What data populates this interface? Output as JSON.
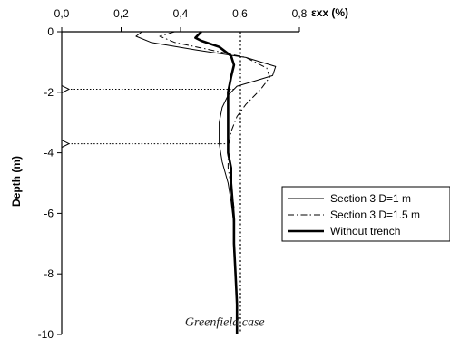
{
  "chart_data": {
    "type": "line",
    "title": "",
    "xlabel": "εxx (%)",
    "ylabel": "Depth (m)",
    "xlim": [
      0.0,
      0.8
    ],
    "ylim": [
      -10,
      0
    ],
    "x_axis_position": "top",
    "x_ticks": [
      "0,0",
      "0,2",
      "0,4",
      "0,6",
      "0,8"
    ],
    "y_ticks": [
      "0",
      "-2",
      "-4",
      "-6",
      "-8",
      "-10"
    ],
    "grid": false,
    "legend_position": "right",
    "series": [
      {
        "name": "Section 3 D=1 m",
        "style": "solid-thin",
        "color": "#000000",
        "points": [
          {
            "x": 0.27,
            "y": 0.0
          },
          {
            "x": 0.25,
            "y": -0.15
          },
          {
            "x": 0.3,
            "y": -0.35
          },
          {
            "x": 0.45,
            "y": -0.6
          },
          {
            "x": 0.62,
            "y": -0.85
          },
          {
            "x": 0.72,
            "y": -1.15
          },
          {
            "x": 0.71,
            "y": -1.45
          },
          {
            "x": 0.66,
            "y": -1.6
          },
          {
            "x": 0.59,
            "y": -1.8
          },
          {
            "x": 0.56,
            "y": -2.1
          },
          {
            "x": 0.54,
            "y": -2.5
          },
          {
            "x": 0.53,
            "y": -3.0
          },
          {
            "x": 0.53,
            "y": -3.7
          },
          {
            "x": 0.54,
            "y": -4.3
          },
          {
            "x": 0.56,
            "y": -5.0
          },
          {
            "x": 0.57,
            "y": -5.6
          },
          {
            "x": 0.58,
            "y": -6.4
          },
          {
            "x": 0.58,
            "y": -7.3
          }
        ]
      },
      {
        "name": "Section 3 D=1.5 m",
        "style": "dash-dot",
        "color": "#000000",
        "points": [
          {
            "x": 0.38,
            "y": 0.0
          },
          {
            "x": 0.33,
            "y": -0.15
          },
          {
            "x": 0.38,
            "y": -0.35
          },
          {
            "x": 0.5,
            "y": -0.6
          },
          {
            "x": 0.62,
            "y": -0.85
          },
          {
            "x": 0.69,
            "y": -1.2
          },
          {
            "x": 0.7,
            "y": -1.5
          },
          {
            "x": 0.67,
            "y": -1.9
          },
          {
            "x": 0.62,
            "y": -2.4
          },
          {
            "x": 0.59,
            "y": -2.8
          },
          {
            "x": 0.57,
            "y": -3.3
          },
          {
            "x": 0.56,
            "y": -3.9
          },
          {
            "x": 0.56,
            "y": -4.5
          },
          {
            "x": 0.57,
            "y": -5.1
          },
          {
            "x": 0.58,
            "y": -5.8
          },
          {
            "x": 0.58,
            "y": -6.5
          },
          {
            "x": 0.58,
            "y": -7.3
          }
        ]
      },
      {
        "name": "Without trench",
        "style": "solid-thick",
        "color": "#000000",
        "points": [
          {
            "x": 0.47,
            "y": 0.0
          },
          {
            "x": 0.46,
            "y": -0.1
          },
          {
            "x": 0.45,
            "y": -0.2
          },
          {
            "x": 0.47,
            "y": -0.3
          },
          {
            "x": 0.53,
            "y": -0.5
          },
          {
            "x": 0.57,
            "y": -0.8
          },
          {
            "x": 0.58,
            "y": -1.1
          },
          {
            "x": 0.57,
            "y": -1.5
          },
          {
            "x": 0.56,
            "y": -2.0
          },
          {
            "x": 0.56,
            "y": -2.5
          },
          {
            "x": 0.56,
            "y": -3.0
          },
          {
            "x": 0.56,
            "y": -3.5
          },
          {
            "x": 0.56,
            "y": -4.0
          },
          {
            "x": 0.57,
            "y": -4.5
          },
          {
            "x": 0.57,
            "y": -5.0
          },
          {
            "x": 0.575,
            "y": -5.6
          },
          {
            "x": 0.58,
            "y": -6.2
          },
          {
            "x": 0.58,
            "y": -7.0
          },
          {
            "x": 0.585,
            "y": -8.0
          },
          {
            "x": 0.59,
            "y": -9.0
          },
          {
            "x": 0.59,
            "y": -10.0
          }
        ]
      },
      {
        "name": "Greenfield case",
        "style": "dotted-thick",
        "color": "#000000",
        "points": [
          {
            "x": 0.6,
            "y": 0.0
          },
          {
            "x": 0.6,
            "y": -10.0
          }
        ]
      }
    ],
    "arrows": [
      {
        "from": {
          "x": 0.58,
          "y": -1.9
        },
        "to": {
          "x": 0.0,
          "y": -1.9
        },
        "style": "dotted"
      },
      {
        "from": {
          "x": 0.55,
          "y": -3.7
        },
        "to": {
          "x": 0.0,
          "y": -3.7
        },
        "style": "dotted"
      }
    ],
    "annotations": [
      {
        "text": "Greenfield case",
        "x": 0.415,
        "y": -9.6
      }
    ]
  }
}
